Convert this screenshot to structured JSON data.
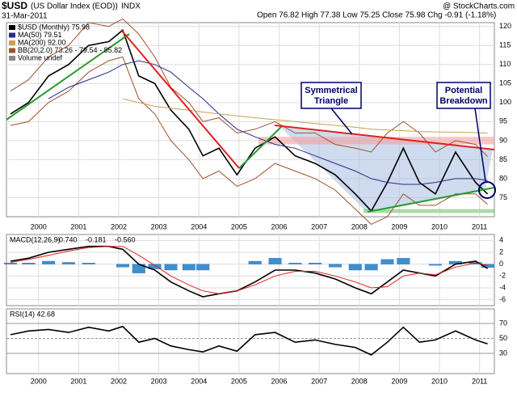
{
  "header": {
    "symbol": "$USD",
    "name": "(US Dollar Index (EOD))",
    "exchange": "INDX",
    "date": "31-Mar-2011",
    "quote": "Open 76.82 High 77.38 Low 75.25 Close 75.98 Chg -0.91 (-1.18%)",
    "credit": "@ StockCharts.com"
  },
  "annotations": {
    "triangle": "Symmetrical Triangle",
    "breakdown": "Potential Breakdown"
  },
  "chart_data": [
    {
      "type": "line",
      "title": "$USD",
      "x": [
        1999.3,
        1999.75,
        2000.25,
        2000.75,
        2001.25,
        2001.75,
        2002.1,
        2002.5,
        2002.9,
        2003.3,
        2003.75,
        2004.1,
        2004.5,
        2004.95,
        2005.4,
        2005.9,
        2006.4,
        2006.9,
        2007.4,
        2007.9,
        2008.3,
        2008.7,
        2009.1,
        2009.5,
        2009.9,
        2010.4,
        2010.9,
        2011.2
      ],
      "series": [
        {
          "name": "$USD (Monthly) 75.98",
          "color": "#000000",
          "values": [
            97,
            100,
            107,
            110,
            115,
            116,
            119,
            107,
            105,
            98,
            93,
            86,
            88,
            81,
            88,
            91,
            86,
            84,
            81,
            76,
            71.5,
            79,
            88,
            79,
            76,
            87,
            79,
            75.98
          ]
        },
        {
          "name": "MA(50) 79.51",
          "color": "#2a2a8c",
          "values": [
            null,
            null,
            101,
            104,
            106,
            108,
            110,
            111,
            110,
            108,
            104,
            101,
            97,
            93,
            91,
            89,
            88,
            86,
            84,
            82,
            80,
            79,
            78.5,
            78.5,
            79,
            80,
            80,
            79.51
          ]
        },
        {
          "name": "MA(200) 92.00",
          "color": "#c8a050",
          "values": [
            null,
            null,
            null,
            null,
            null,
            null,
            101,
            100,
            99,
            98.5,
            98,
            97.5,
            97,
            96.5,
            96,
            95.5,
            95,
            94.5,
            94,
            93.5,
            93,
            92.8,
            92.6,
            92.4,
            92.3,
            92.2,
            92.1,
            92.0
          ]
        }
      ],
      "bands": {
        "name": "BB(20,2.0) 73.26 - 79.54 - 85.82",
        "color": "#a0522d",
        "upper": [
          103,
          106,
          112,
          115,
          121,
          120,
          122,
          118,
          112,
          104,
          100,
          95,
          96,
          92,
          93,
          95,
          92,
          92,
          89,
          88,
          87,
          92,
          95,
          92,
          87,
          90,
          89,
          85.82
        ],
        "lower": [
          94,
          95,
          100,
          103,
          108,
          111,
          112,
          101,
          97,
          90,
          85,
          80,
          82,
          78,
          80,
          84,
          82,
          80,
          77,
          72,
          68,
          70,
          76,
          73,
          73,
          76,
          76,
          73.26
        ]
      },
      "volume_legend": "Volume undef",
      "xlim": [
        1999.2,
        2011.37
      ],
      "xticks": [
        2000,
        2001,
        2002,
        2003,
        2004,
        2005,
        2006,
        2007,
        2008,
        2009,
        2010,
        2011
      ],
      "ylim": [
        70,
        121
      ],
      "yticks": [
        75,
        80,
        85,
        90,
        95,
        100,
        105,
        110,
        115,
        120
      ],
      "grid": true
    },
    {
      "type": "macd",
      "title": "MACD(12,26,9)",
      "series": [
        {
          "name": "-0.740",
          "color": "#000000",
          "values": [
            0.5,
            1,
            2,
            2.5,
            3,
            3,
            2.5,
            0,
            -1,
            -3,
            -4.5,
            -5.5,
            -5,
            -4.5,
            -3,
            -1,
            -1,
            -1.5,
            -2.5,
            -4,
            -5,
            -3,
            -1,
            -1.5,
            -2,
            0,
            0.5,
            -0.74
          ]
        },
        {
          "name": "-0.181",
          "color": "#e02020",
          "values": [
            0.3,
            0.8,
            1.5,
            2.2,
            2.8,
            3,
            3,
            1.5,
            -0.2,
            -2,
            -3.5,
            -4.5,
            -5,
            -4.5,
            -3.5,
            -2,
            -1.2,
            -1.2,
            -2,
            -3,
            -4,
            -3.8,
            -2,
            -1.5,
            -1.8,
            -0.5,
            0.2,
            -0.181
          ]
        },
        {
          "name": "-0.560",
          "color": "#3f8fd0",
          "type": "bar",
          "values": [
            0.2,
            0.2,
            0.5,
            0.3,
            0.2,
            0,
            -0.5,
            -1.5,
            -0.8,
            -1,
            -1,
            -1,
            0,
            0,
            0.5,
            1,
            0.2,
            0.2,
            -0.5,
            -1,
            -1,
            0.8,
            1,
            0,
            -0.2,
            0.5,
            0.3,
            -0.56
          ]
        }
      ],
      "ylim": [
        -7,
        5
      ],
      "yticks": [
        4,
        2,
        0,
        -2,
        -4,
        -6
      ],
      "grid": true
    },
    {
      "type": "line",
      "title": "RSI(14) 42.68",
      "series": [
        {
          "color": "#000000",
          "values": [
            55,
            60,
            62,
            58,
            65,
            60,
            66,
            45,
            50,
            40,
            35,
            32,
            40,
            33,
            55,
            58,
            45,
            48,
            42,
            38,
            28,
            45,
            65,
            45,
            48,
            60,
            48,
            42.68
          ]
        }
      ],
      "ylim": [
        3,
        89.5
      ],
      "yticks": [
        70,
        50,
        30
      ],
      "grid": true
    }
  ]
}
